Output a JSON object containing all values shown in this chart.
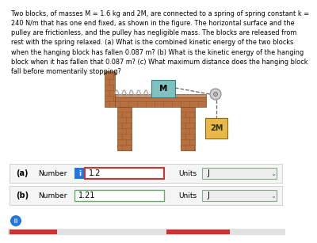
{
  "problem_text": "Two blocks, of masses M = 1.6 kg and 2M, are connected to a spring of spring constant k =\n240 N/m that has one end fixed, as shown in the figure. The horizontal surface and the\npulley are frictionless, and the pulley has negligible mass. The blocks are released from\nrest with the spring relaxed. (a) What is the combined kinetic energy of the two blocks\nwhen the hanging block has fallen 0.087 m? (b) What is the kinetic energy of the hanging\nblock when it has fallen that 0.087 m? (c) What maximum distance does the hanging block\nfall before momentarily stopping?",
  "answer_a_label": "(a)",
  "answer_a_value": "1.2",
  "answer_a_unit_val": "J",
  "answer_b_label": "(b)",
  "answer_b_value": "1.21",
  "answer_b_unit_val": "J",
  "bg_color": "#ffffff",
  "text_color": "#000000",
  "brick_color": "#b87040",
  "brick_dark": "#7a4a20",
  "brick_mortar": "#c8906a",
  "block_M_color": "#80c0c0",
  "block_M_edge": "#3a8080",
  "block_2M_color": "#e8b84b",
  "block_2M_edge": "#8B6914",
  "spring_color": "#aaaaaa",
  "pulley_color": "#bbbbbb",
  "rope_color": "#666666",
  "input_border_a": "#cc3333",
  "input_border_b": "#66aa66",
  "icon_blue": "#2277dd",
  "row_bg": "#f5f5f5",
  "row_border": "#cccccc",
  "dropdown_bg": "#eeeeee",
  "dropdown_border": "#88aa88",
  "hint_blue": "#2277dd"
}
